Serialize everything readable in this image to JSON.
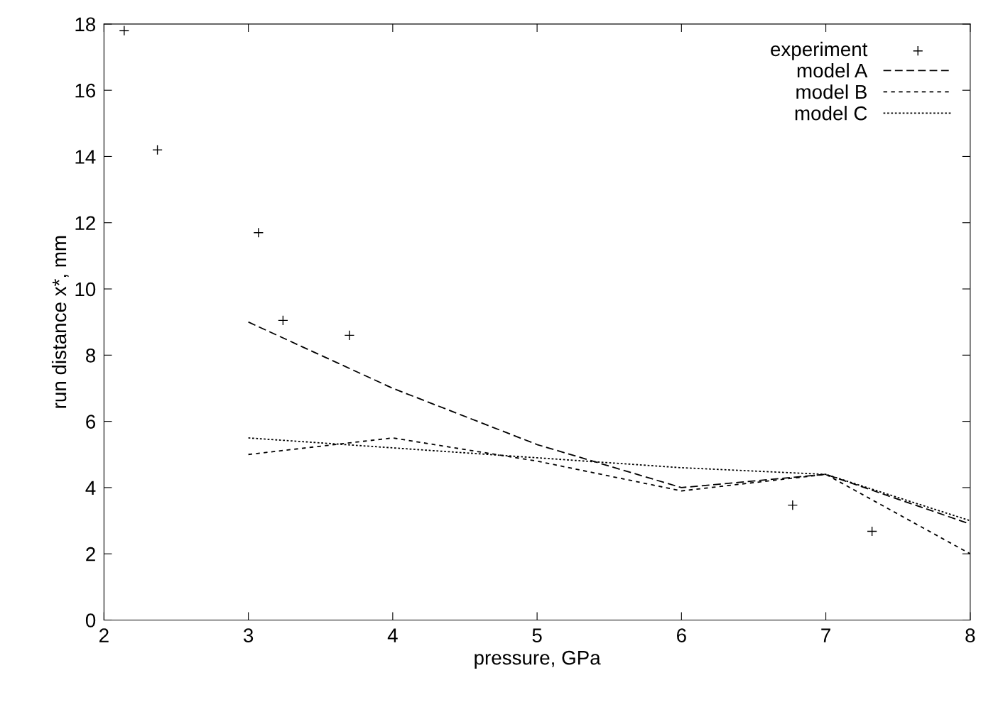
{
  "chart_data": {
    "type": "line",
    "xlabel": "pressure, GPa",
    "ylabel": "run distance x*, mm",
    "xlim": [
      2,
      8
    ],
    "xticks": [
      2,
      3,
      4,
      5,
      6,
      7,
      8
    ],
    "ylim": [
      0,
      18
    ],
    "yticks": [
      0,
      2,
      4,
      6,
      8,
      10,
      12,
      14,
      16,
      18
    ],
    "grid": false,
    "legend": "top right",
    "series": [
      {
        "name": "experiment",
        "type": "scatter",
        "marker": "cross",
        "color": "#000000",
        "x": [
          2.14,
          2.37,
          3.07,
          3.24,
          3.7,
          6.77,
          7.32
        ],
        "values": [
          17.8,
          14.2,
          11.7,
          9.05,
          8.6,
          3.47,
          2.68
        ]
      },
      {
        "name": "model A",
        "line_style": "dashed",
        "color": "#000000",
        "x": [
          3,
          4,
          5,
          6,
          7,
          8
        ],
        "values": [
          9.0,
          7.0,
          5.3,
          4.0,
          4.4,
          2.9
        ]
      },
      {
        "name": "model B",
        "line_style": "dashed",
        "color": "#000000",
        "x": [
          3,
          4,
          5,
          6,
          7,
          8
        ],
        "values": [
          5.0,
          5.5,
          4.8,
          3.9,
          4.4,
          2.0
        ]
      },
      {
        "name": "model C",
        "line_style": "dotted",
        "color": "#000000",
        "x": [
          3,
          4,
          5,
          6,
          7,
          8
        ],
        "values": [
          5.5,
          5.2,
          4.9,
          4.6,
          4.4,
          3.0
        ]
      }
    ]
  }
}
